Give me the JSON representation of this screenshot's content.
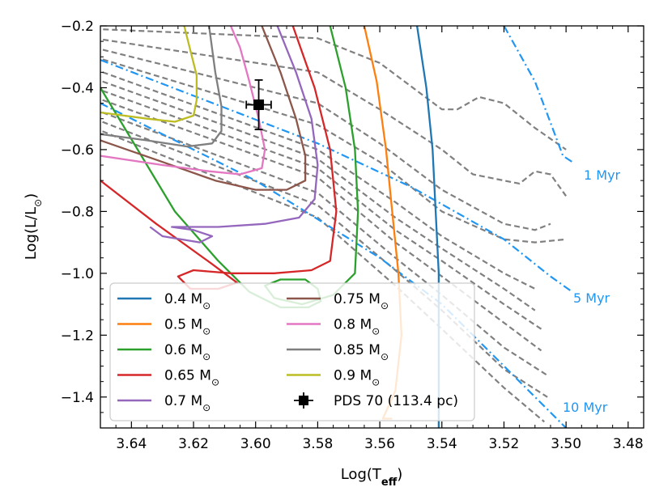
{
  "chart_data": {
    "type": "line",
    "title": "",
    "xlabel": "Log(T",
    "xlabel_sub": "eff",
    "xlabel_close": ")",
    "ylabel": "Log(L/L",
    "ylabel_sun": "⊙",
    "ylabel_close": ")",
    "xlim": [
      3.65,
      3.475
    ],
    "ylim": [
      -1.5,
      -0.2
    ],
    "xticks": [
      {
        "value": 3.64,
        "label": "3.64"
      },
      {
        "value": 3.62,
        "label": "3.62"
      },
      {
        "value": 3.6,
        "label": "3.60"
      },
      {
        "value": 3.58,
        "label": "3.58"
      },
      {
        "value": 3.56,
        "label": "3.56"
      },
      {
        "value": 3.54,
        "label": "3.54"
      },
      {
        "value": 3.52,
        "label": "3.52"
      },
      {
        "value": 3.5,
        "label": "3.50"
      },
      {
        "value": 3.48,
        "label": "3.48"
      }
    ],
    "yticks": [
      {
        "value": -0.2,
        "label": "−0.2"
      },
      {
        "value": -0.4,
        "label": "−0.4"
      },
      {
        "value": -0.6,
        "label": "−0.6"
      },
      {
        "value": -0.8,
        "label": "−0.8"
      },
      {
        "value": -1.0,
        "label": "−1.0"
      },
      {
        "value": -1.2,
        "label": "−1.2"
      },
      {
        "value": -1.4,
        "label": "−1.4"
      }
    ],
    "tracks": [
      {
        "name": "0.4  M",
        "color": "#1f77b4",
        "points": [
          [
            3.548,
            -0.2
          ],
          [
            3.545,
            -0.4
          ],
          [
            3.543,
            -0.6
          ],
          [
            3.542,
            -0.8
          ],
          [
            3.541,
            -1.0
          ],
          [
            3.541,
            -1.2
          ],
          [
            3.541,
            -1.5
          ]
        ]
      },
      {
        "name": "0.5  M",
        "color": "#ff7f0e",
        "points": [
          [
            3.565,
            -0.2
          ],
          [
            3.561,
            -0.38
          ],
          [
            3.558,
            -0.6
          ],
          [
            3.556,
            -0.8
          ],
          [
            3.554,
            -1.0
          ],
          [
            3.553,
            -1.2
          ],
          [
            3.555,
            -1.38
          ],
          [
            3.559,
            -1.47
          ],
          [
            3.556,
            -1.47
          ]
        ]
      },
      {
        "name": "0.6  M",
        "color": "#2ca02c",
        "points": [
          [
            3.65,
            -0.4
          ],
          [
            3.638,
            -0.6
          ],
          [
            3.626,
            -0.8
          ],
          [
            3.612,
            -0.96
          ],
          [
            3.602,
            -1.06
          ],
          [
            3.592,
            -1.11
          ],
          [
            3.583,
            -1.11
          ],
          [
            3.579,
            -1.09
          ],
          [
            3.58,
            -1.05
          ],
          [
            3.584,
            -1.02
          ],
          [
            3.592,
            -1.02
          ],
          [
            3.597,
            -1.04
          ],
          [
            3.594,
            -1.08
          ],
          [
            3.585,
            -1.1
          ],
          [
            3.575,
            -1.07
          ],
          [
            3.568,
            -1.0
          ],
          [
            3.567,
            -0.8
          ],
          [
            3.568,
            -0.6
          ],
          [
            3.571,
            -0.4
          ],
          [
            3.576,
            -0.2
          ]
        ]
      },
      {
        "name": "0.65 M",
        "color": "#d62728",
        "points": [
          [
            3.65,
            -0.7
          ],
          [
            3.632,
            -0.84
          ],
          [
            3.614,
            -0.97
          ],
          [
            3.606,
            -1.03
          ],
          [
            3.612,
            -1.05
          ],
          [
            3.621,
            -1.05
          ],
          [
            3.625,
            -1.01
          ],
          [
            3.62,
            -0.99
          ],
          [
            3.608,
            -1.0
          ],
          [
            3.594,
            -1.0
          ],
          [
            3.582,
            -0.99
          ],
          [
            3.576,
            -0.96
          ],
          [
            3.574,
            -0.8
          ],
          [
            3.576,
            -0.6
          ],
          [
            3.581,
            -0.4
          ],
          [
            3.588,
            -0.2
          ]
        ]
      },
      {
        "name": "0.7  M",
        "color": "#9467bd",
        "points": [
          [
            3.634,
            -0.85
          ],
          [
            3.63,
            -0.88
          ],
          [
            3.618,
            -0.9
          ],
          [
            3.614,
            -0.88
          ],
          [
            3.62,
            -0.86
          ],
          [
            3.627,
            -0.85
          ],
          [
            3.612,
            -0.85
          ],
          [
            3.597,
            -0.84
          ],
          [
            3.586,
            -0.82
          ],
          [
            3.581,
            -0.76
          ],
          [
            3.58,
            -0.65
          ],
          [
            3.582,
            -0.5
          ],
          [
            3.587,
            -0.35
          ],
          [
            3.593,
            -0.2
          ]
        ]
      },
      {
        "name": "0.75 M",
        "color": "#8c564b",
        "points": [
          [
            3.65,
            -0.57
          ],
          [
            3.63,
            -0.64
          ],
          [
            3.613,
            -0.7
          ],
          [
            3.6,
            -0.73
          ],
          [
            3.59,
            -0.73
          ],
          [
            3.584,
            -0.7
          ],
          [
            3.584,
            -0.62
          ],
          [
            3.587,
            -0.5
          ],
          [
            3.592,
            -0.35
          ],
          [
            3.598,
            -0.2
          ]
        ]
      },
      {
        "name": "0.8  M",
        "color": "#e377c2",
        "points": [
          [
            3.65,
            -0.62
          ],
          [
            3.63,
            -0.65
          ],
          [
            3.615,
            -0.67
          ],
          [
            3.605,
            -0.68
          ],
          [
            3.598,
            -0.66
          ],
          [
            3.597,
            -0.6
          ],
          [
            3.599,
            -0.5
          ],
          [
            3.602,
            -0.38
          ],
          [
            3.605,
            -0.27
          ],
          [
            3.608,
            -0.2
          ]
        ]
      },
      {
        "name": "0.85 M",
        "color": "#7f7f7f",
        "points": [
          [
            3.65,
            -0.55
          ],
          [
            3.635,
            -0.57
          ],
          [
            3.622,
            -0.59
          ],
          [
            3.614,
            -0.58
          ],
          [
            3.611,
            -0.54
          ],
          [
            3.611,
            -0.46
          ],
          [
            3.613,
            -0.35
          ],
          [
            3.615,
            -0.2
          ]
        ]
      },
      {
        "name": "0.9  M",
        "color": "#bcbd22",
        "points": [
          [
            3.65,
            -0.48
          ],
          [
            3.635,
            -0.5
          ],
          [
            3.626,
            -0.51
          ],
          [
            3.62,
            -0.49
          ],
          [
            3.619,
            -0.44
          ],
          [
            3.619,
            -0.36
          ],
          [
            3.621,
            -0.28
          ],
          [
            3.623,
            -0.2
          ]
        ]
      }
    ],
    "isochrones_labeled": [
      {
        "label": "1 Myr",
        "points": [
          [
            3.52,
            -0.2
          ],
          [
            3.51,
            -0.38
          ],
          [
            3.501,
            -0.62
          ],
          [
            3.498,
            -0.64
          ]
        ]
      },
      {
        "label": "5 Myr",
        "points": [
          [
            3.65,
            -0.31
          ],
          [
            3.58,
            -0.58
          ],
          [
            3.55,
            -0.72
          ],
          [
            3.52,
            -0.89
          ],
          [
            3.505,
            -1.01
          ],
          [
            3.498,
            -1.06
          ]
        ]
      },
      {
        "label": "10 Myr",
        "points": [
          [
            3.65,
            -0.45
          ],
          [
            3.6,
            -0.7
          ],
          [
            3.56,
            -0.95
          ],
          [
            3.54,
            -1.1
          ],
          [
            3.52,
            -1.3
          ],
          [
            3.505,
            -1.45
          ],
          [
            3.5,
            -1.5
          ]
        ]
      }
    ],
    "isochrones_gray": [
      {
        "points": [
          [
            3.652,
            -0.21
          ],
          [
            3.58,
            -0.24
          ],
          [
            3.56,
            -0.32
          ],
          [
            3.54,
            -0.47
          ],
          [
            3.535,
            -0.47
          ],
          [
            3.528,
            -0.43
          ],
          [
            3.52,
            -0.45
          ],
          [
            3.51,
            -0.53
          ],
          [
            3.5,
            -0.6
          ]
        ]
      },
      {
        "points": [
          [
            3.652,
            -0.24
          ],
          [
            3.58,
            -0.35
          ],
          [
            3.56,
            -0.47
          ],
          [
            3.54,
            -0.6
          ],
          [
            3.53,
            -0.68
          ],
          [
            3.515,
            -0.71
          ],
          [
            3.51,
            -0.67
          ],
          [
            3.505,
            -0.68
          ],
          [
            3.5,
            -0.75
          ]
        ]
      },
      {
        "points": [
          [
            3.652,
            -0.27
          ],
          [
            3.58,
            -0.45
          ],
          [
            3.56,
            -0.58
          ],
          [
            3.54,
            -0.73
          ],
          [
            3.52,
            -0.84
          ],
          [
            3.51,
            -0.86
          ],
          [
            3.505,
            -0.84
          ]
        ]
      },
      {
        "points": [
          [
            3.652,
            -0.3
          ],
          [
            3.58,
            -0.52
          ],
          [
            3.56,
            -0.64
          ],
          [
            3.54,
            -0.8
          ],
          [
            3.52,
            -0.89
          ],
          [
            3.51,
            -0.9
          ],
          [
            3.5,
            -0.89
          ]
        ]
      },
      {
        "points": [
          [
            3.652,
            -0.34
          ],
          [
            3.58,
            -0.6
          ],
          [
            3.555,
            -0.77
          ],
          [
            3.54,
            -0.88
          ],
          [
            3.52,
            -1.0
          ],
          [
            3.51,
            -1.05
          ]
        ]
      },
      {
        "points": [
          [
            3.652,
            -0.37
          ],
          [
            3.58,
            -0.63
          ],
          [
            3.555,
            -0.82
          ],
          [
            3.54,
            -0.92
          ],
          [
            3.52,
            -1.05
          ],
          [
            3.51,
            -1.12
          ]
        ]
      },
      {
        "points": [
          [
            3.652,
            -0.4
          ],
          [
            3.58,
            -0.66
          ],
          [
            3.555,
            -0.86
          ],
          [
            3.54,
            -0.96
          ],
          [
            3.52,
            -1.1
          ],
          [
            3.508,
            -1.18
          ]
        ]
      },
      {
        "points": [
          [
            3.652,
            -0.43
          ],
          [
            3.58,
            -0.69
          ],
          [
            3.555,
            -0.9
          ],
          [
            3.54,
            -1.01
          ],
          [
            3.52,
            -1.16
          ],
          [
            3.508,
            -1.25
          ]
        ]
      },
      {
        "points": [
          [
            3.652,
            -0.47
          ],
          [
            3.58,
            -0.74
          ],
          [
            3.555,
            -0.95
          ],
          [
            3.54,
            -1.07
          ],
          [
            3.52,
            -1.24
          ],
          [
            3.506,
            -1.33
          ]
        ]
      },
      {
        "points": [
          [
            3.652,
            -0.5
          ],
          [
            3.58,
            -0.78
          ],
          [
            3.555,
            -0.99
          ],
          [
            3.54,
            -1.12
          ],
          [
            3.52,
            -1.31
          ],
          [
            3.506,
            -1.4
          ]
        ]
      },
      {
        "points": [
          [
            3.652,
            -0.53
          ],
          [
            3.58,
            -0.82
          ],
          [
            3.555,
            -1.04
          ],
          [
            3.54,
            -1.18
          ],
          [
            3.52,
            -1.37
          ],
          [
            3.507,
            -1.48
          ]
        ]
      }
    ],
    "target": {
      "label": "PDS 70 (113.4 pc)",
      "x": 3.599,
      "y": -0.455,
      "x_err": 0.004,
      "y_err": 0.08,
      "color": "#000000"
    },
    "legend": {
      "placement": "lower-left",
      "sun_symbol": "⊙"
    }
  },
  "colors": {
    "isochrone_labeled": "#2196f3",
    "isochrone_gray": "#808080",
    "axes": "#000000",
    "background": "#ffffff"
  }
}
